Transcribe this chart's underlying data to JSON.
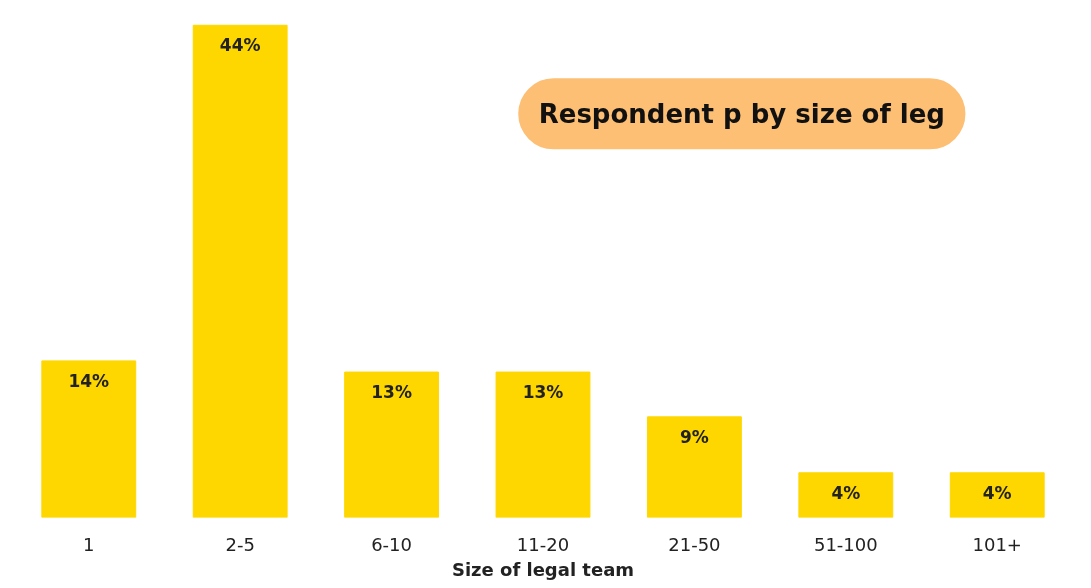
{
  "chart_data": {
    "type": "bar",
    "title": "Respondent p by size of leg",
    "xlabel": "Size of legal team",
    "categories": [
      "1",
      "2-5",
      "6-10",
      "11-20",
      "21-50",
      "51-100",
      "101+"
    ],
    "values": [
      14,
      44,
      13,
      13,
      9,
      4,
      4
    ],
    "value_labels": [
      "14%",
      "44%",
      "13%",
      "13%",
      "9%",
      "4%",
      "4%"
    ],
    "color": "#ffd700",
    "grid": false
  }
}
